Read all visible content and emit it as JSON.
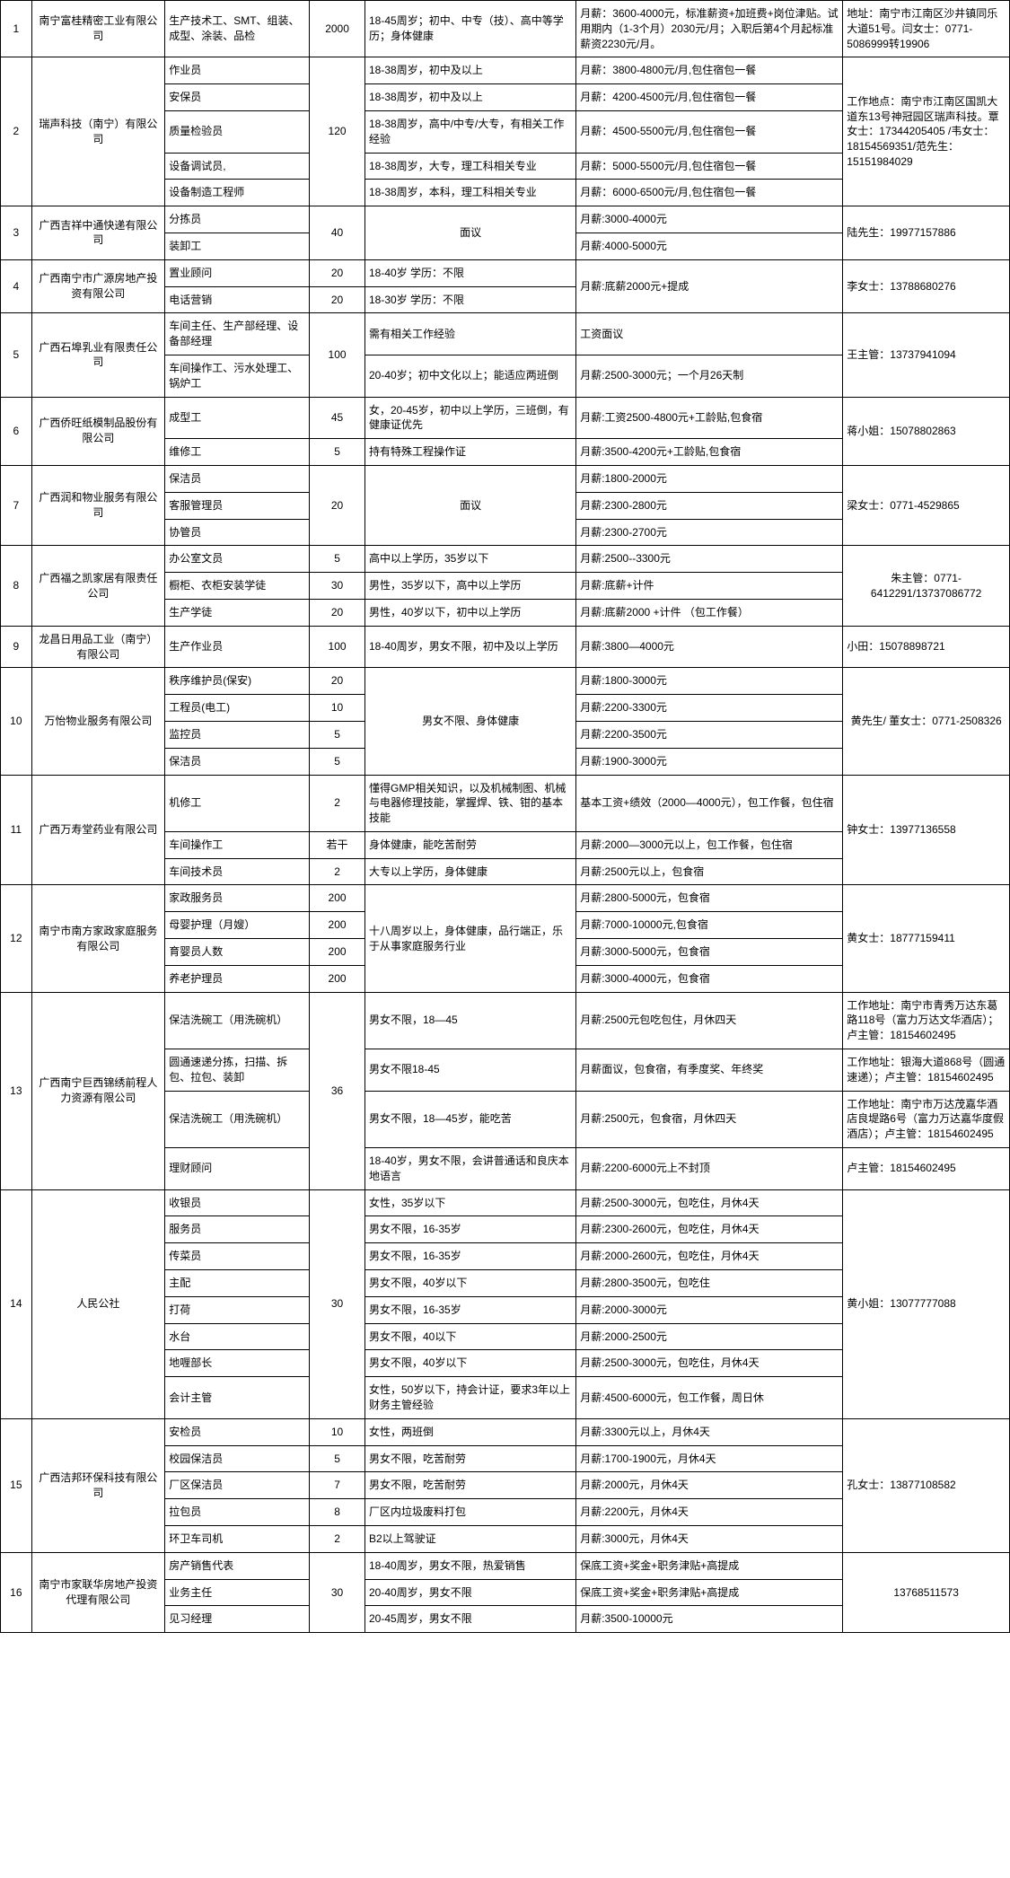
{
  "rows": [
    {
      "n": "1",
      "comp": "南宁富桂精密工业有限公司",
      "pos": "生产技术工、SMT、组装、成型、涂装、品检",
      "cnt": "2000",
      "req": "18-45周岁；初中、中专（技）、高中等学历；身体健康",
      "sal": "月薪：3600-4000元，标准薪资+加班费+岗位津贴。试用期内（1-3个月）2030元/月；入职后第4个月起标准薪资2230元/月。",
      "contact": "地址：南宁市江南区沙井镇同乐大道51号。闫女士：0771-5086999转19906"
    },
    {
      "n": "2",
      "comp": "瑞声科技（南宁）有限公司",
      "contact": "工作地点：南宁市江南区国凯大道东13号神冠园区瑞声科技。覃女士：17344205405 /韦女士：18154569351/范先生：15151984029",
      "sub": [
        {
          "pos": "作业员",
          "cnt": "120",
          "req": "18-38周岁，初中及以上",
          "sal": "月薪：3800-4800元/月,包住宿包一餐"
        },
        {
          "pos": "安保员",
          "req": "18-38周岁，初中及以上",
          "sal": "月薪：4200-4500元/月,包住宿包一餐"
        },
        {
          "pos": "质量检验员",
          "req": "18-38周岁，高中/中专/大专，有相关工作经验",
          "sal": "月薪：4500-5500元/月,包住宿包一餐"
        },
        {
          "pos": "设备调试员,",
          "req": "18-38周岁，大专，理工科相关专业",
          "sal": "月薪：5000-5500元/月,包住宿包一餐"
        },
        {
          "pos": "设备制造工程师",
          "req": "18-38周岁，本科，理工科相关专业",
          "sal": "月薪：6000-6500元/月,包住宿包一餐"
        }
      ]
    },
    {
      "n": "3",
      "comp": "广西吉祥中通快递有限公司",
      "contact": "陆先生：19977157886",
      "sub": [
        {
          "pos": "分拣员",
          "cnt": "40",
          "req": "面议",
          "sal": "月薪:3000-4000元",
          "reqCenter": true
        },
        {
          "pos": "装卸工",
          "sal": "月薪:4000-5000元"
        }
      ]
    },
    {
      "n": "4",
      "comp": "广西南宁市广源房地产投资有限公司",
      "contact": "李女士：13788680276",
      "sub": [
        {
          "pos": "置业顾问",
          "cnt": "20",
          "req": "18-40岁 学历：不限",
          "sal": "月薪:底薪2000元+提成",
          "salSpan": 2
        },
        {
          "pos": "电话营销",
          "cnt": "20",
          "req": "18-30岁 学历：不限"
        }
      ]
    },
    {
      "n": "5",
      "comp": "广西石埠乳业有限责任公司",
      "contact": "王主管：13737941094",
      "sub": [
        {
          "pos": "车间主任、生产部经理、设备部经理",
          "cnt": "100",
          "req": "需有相关工作经验",
          "sal": "工资面议"
        },
        {
          "pos": "车间操作工、污水处理工、锅炉工",
          "req": "20-40岁；初中文化以上；能适应两班倒",
          "sal": "月薪:2500-3000元；一个月26天制"
        }
      ]
    },
    {
      "n": "6",
      "comp": "广西侨旺纸模制品股份有限公司",
      "contact": "蒋小姐：15078802863",
      "sub": [
        {
          "pos": "成型工",
          "cnt": "45",
          "req": "女，20-45岁，初中以上学历，三班倒，有健康证优先",
          "sal": "月薪:工资2500-4800元+工龄贴,包食宿"
        },
        {
          "pos": "维修工",
          "cnt": "5",
          "req": "持有特殊工程操作证",
          "sal": "月薪:3500-4200元+工龄贴,包食宿"
        }
      ]
    },
    {
      "n": "7",
      "comp": "广西润和物业服务有限公司",
      "contact": "梁女士：0771-4529865",
      "sub": [
        {
          "pos": "保洁员",
          "cnt": "20",
          "req": "面议",
          "sal": "月薪:1800-2000元",
          "reqCenter": true
        },
        {
          "pos": "客服管理员",
          "sal": "月薪:2300-2800元"
        },
        {
          "pos": "协管员",
          "sal": "月薪:2300-2700元"
        }
      ]
    },
    {
      "n": "8",
      "comp": "广西福之凯家居有限责任公司",
      "contact": "朱主管：0771-6412291/13737086772",
      "sub": [
        {
          "pos": "办公室文员",
          "cnt": "5",
          "req": "高中以上学历，35岁以下",
          "sal": "月薪:2500--3300元"
        },
        {
          "pos": "橱柜、衣柜安装学徒",
          "cnt": "30",
          "req": "男性，35岁以下，高中以上学历",
          "sal": "月薪:底薪+计件"
        },
        {
          "pos": "生产学徒",
          "cnt": "20",
          "req": "男性，40岁以下，初中以上学历",
          "sal": "月薪:底薪2000 +计件 （包工作餐）"
        }
      ]
    },
    {
      "n": "9",
      "comp": "龙昌日用品工业（南宁）有限公司",
      "pos": "生产作业员",
      "cnt": "100",
      "req": "18-40周岁，男女不限，初中及以上学历",
      "sal": "月薪:3800—4000元",
      "contact": "小田：15078898721"
    },
    {
      "n": "10",
      "comp": "万怡物业服务有限公司",
      "contact": "黄先生/ 董女士：0771-2508326",
      "sub": [
        {
          "pos": "秩序维护员(保安)",
          "cnt": "20",
          "req": "男女不限、身体健康",
          "sal": "月薪:1800-3000元",
          "reqCenter": true
        },
        {
          "pos": "工程员(电工)",
          "cnt": "10",
          "sal": "月薪:2200-3300元"
        },
        {
          "pos": "监控员",
          "cnt": "5",
          "sal": "月薪:2200-3500元"
        },
        {
          "pos": "保洁员",
          "cnt": "5",
          "sal": "月薪:1900-3000元"
        }
      ]
    },
    {
      "n": "11",
      "comp": "广西万寿堂药业有限公司",
      "contact": "钟女士：13977136558",
      "sub": [
        {
          "pos": "机修工",
          "cnt": "2",
          "req": "懂得GMP相关知识，以及机械制图、机械与电器修理技能，掌握焊、铁、钳的基本技能",
          "sal": "基本工资+绩效（2000—4000元），包工作餐，包住宿"
        },
        {
          "pos": "车间操作工",
          "cnt": "若干",
          "req": "身体健康，能吃苦耐劳",
          "sal": "月薪:2000—3000元以上，包工作餐，包住宿"
        },
        {
          "pos": "车间技术员",
          "cnt": "2",
          "req": "大专以上学历，身体健康",
          "sal": "月薪:2500元以上，包食宿"
        }
      ]
    },
    {
      "n": "12",
      "comp": "南宁市南方家政家庭服务有限公司",
      "contact": "黄女士：18777159411",
      "sub": [
        {
          "pos": "家政服务员",
          "cnt": "200",
          "req": "十八周岁以上，身体健康，品行端正，乐于从事家庭服务行业",
          "sal": "月薪:2800-5000元，包食宿"
        },
        {
          "pos": "母婴护理（月嫂）",
          "cnt": "200",
          "sal": "月薪:7000-10000元,包食宿"
        },
        {
          "pos": "育婴员人数",
          "cnt": "200",
          "sal": "月薪:3000-5000元，包食宿"
        },
        {
          "pos": "养老护理员",
          "cnt": "200",
          "sal": "月薪:3000-4000元，包食宿"
        }
      ]
    },
    {
      "n": "13",
      "comp": "广西南宁巨西锦绣前程人力资源有限公司",
      "sub": [
        {
          "pos": "保洁洗碗工（用洗碗机）",
          "cnt": "36",
          "req": "男女不限，18—45",
          "sal": "月薪:2500元包吃包住，月休四天",
          "contact": "工作地址：南宁市青秀万达东葛路118号（富力万达文华酒店）；卢主管：18154602495"
        },
        {
          "pos": "圆通速递分拣，扫描、拆包、拉包、装卸",
          "req": "男女不限18-45",
          "sal": "月薪面议，包食宿，有季度奖、年终奖",
          "contact": "工作地址：银海大道868号（圆通速递）；卢主管：18154602495"
        },
        {
          "pos": "保洁洗碗工（用洗碗机）",
          "req": "男女不限，18—45岁，能吃苦",
          "sal": "月薪:2500元，包食宿，月休四天",
          "contact": "工作地址：南宁市万达茂嘉华酒店良堤路6号（富力万达嘉华度假酒店）；卢主管：18154602495"
        },
        {
          "pos": "理财顾问",
          "req": "18-40岁，男女不限，会讲普通话和良庆本地语言",
          "sal": "月薪:2200-6000元上不封顶",
          "contact": "卢主管：18154602495"
        }
      ]
    },
    {
      "n": "14",
      "comp": "人民公社",
      "contact": "黄小姐：13077777088",
      "sub": [
        {
          "pos": "收银员",
          "cnt": "30",
          "req": "女性，35岁以下",
          "sal": "月薪:2500-3000元，包吃住，月休4天"
        },
        {
          "pos": "服务员",
          "req": "男女不限，16-35岁",
          "sal": "月薪:2300-2600元，包吃住，月休4天"
        },
        {
          "pos": "传菜员",
          "req": "男女不限，16-35岁",
          "sal": "月薪:2000-2600元，包吃住，月休4天"
        },
        {
          "pos": "主配",
          "req": "男女不限，40岁以下",
          "sal": "月薪:2800-3500元，包吃住"
        },
        {
          "pos": "打荷",
          "req": "男女不限，16-35岁",
          "sal": "月薪:2000-3000元"
        },
        {
          "pos": "水台",
          "req": "男女不限，40以下",
          "sal": "月薪:2000-2500元"
        },
        {
          "pos": "地喱部长",
          "req": "男女不限，40岁以下",
          "sal": "月薪:2500-3000元，包吃住，月休4天"
        },
        {
          "pos": "会计主管",
          "req": "女性，50岁以下，持会计证，要求3年以上财务主管经验",
          "sal": "月薪:4500-6000元，包工作餐，周日休"
        }
      ]
    },
    {
      "n": "15",
      "comp": "广西洁邦环保科技有限公司",
      "contact": "孔女士：13877108582",
      "sub": [
        {
          "pos": "安检员",
          "cnt": "10",
          "req": "女性，两班倒",
          "sal": "月薪:3300元以上，月休4天"
        },
        {
          "pos": "校园保洁员",
          "cnt": "5",
          "req": "男女不限，吃苦耐劳",
          "sal": "月薪:1700-1900元，月休4天"
        },
        {
          "pos": "厂区保洁员",
          "cnt": "7",
          "req": "男女不限，吃苦耐劳",
          "sal": "月薪:2000元，月休4天"
        },
        {
          "pos": "拉包员",
          "cnt": "8",
          "req": "厂区内垃圾废料打包",
          "sal": "月薪:2200元，月休4天"
        },
        {
          "pos": "环卫车司机",
          "cnt": "2",
          "req": "B2以上驾驶证",
          "sal": "月薪:3000元，月休4天"
        }
      ]
    },
    {
      "n": "16",
      "comp": "南宁市家联华房地产投资代理有限公司",
      "contact": "13768511573",
      "sub": [
        {
          "pos": "房产销售代表",
          "cnt": "30",
          "req": "18-40周岁，男女不限，热爱销售",
          "sal": "保底工资+奖金+职务津贴+高提成"
        },
        {
          "pos": "业务主任",
          "req": "20-40周岁，男女不限",
          "sal": "保底工资+奖金+职务津贴+高提成"
        },
        {
          "pos": "见习经理",
          "req": "20-45周岁，男女不限",
          "sal": "月薪:3500-10000元"
        }
      ]
    }
  ]
}
